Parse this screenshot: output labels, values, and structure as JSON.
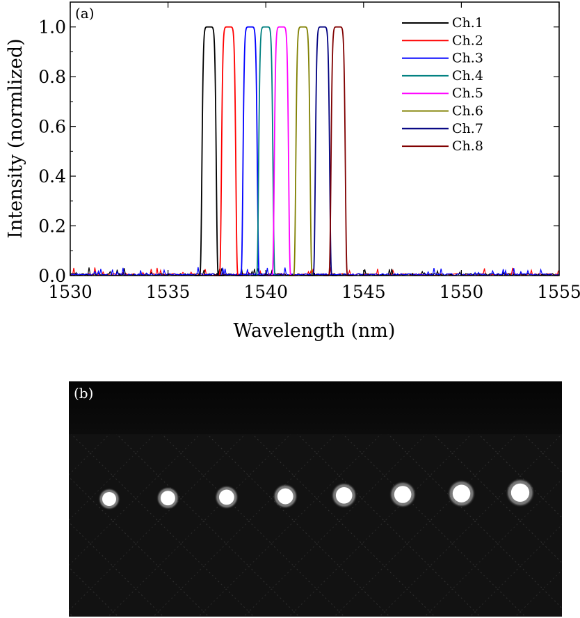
{
  "chart_data": [
    {
      "type": "line",
      "panel_label": "(a)",
      "xlabel": "Wavelength (nm)",
      "ylabel": "Intensity (normlized)",
      "xlim": [
        1530,
        1555
      ],
      "ylim": [
        0,
        1.1
      ],
      "xticks": [
        1530,
        1535,
        1540,
        1545,
        1550,
        1555
      ],
      "xtick_labels": [
        "1530",
        "1535",
        "1540",
        "1545",
        "1550",
        "1555"
      ],
      "yticks": [
        0.0,
        0.2,
        0.4,
        0.6,
        0.8,
        1.0
      ],
      "ytick_labels": [
        "0.0",
        "0.2",
        "0.4",
        "0.6",
        "0.8",
        "1.0"
      ],
      "legend_position": "top-right",
      "series": [
        {
          "name": "Ch.1",
          "color": "#000000",
          "center": 1537.1,
          "peak": 1.0
        },
        {
          "name": "Ch.2",
          "color": "#ff0000",
          "center": 1538.1,
          "peak": 1.0
        },
        {
          "name": "Ch.3",
          "color": "#0000ff",
          "center": 1539.2,
          "peak": 1.0
        },
        {
          "name": "Ch.4",
          "color": "#008080",
          "center": 1540.0,
          "peak": 1.0
        },
        {
          "name": "Ch.5",
          "color": "#ff00ff",
          "center": 1540.8,
          "peak": 1.0
        },
        {
          "name": "Ch.6",
          "color": "#808000",
          "center": 1541.9,
          "peak": 1.0
        },
        {
          "name": "Ch.7",
          "color": "#000080",
          "center": 1542.9,
          "peak": 1.0
        },
        {
          "name": "Ch.8",
          "color": "#800000",
          "center": 1543.7,
          "peak": 1.0
        }
      ]
    },
    {
      "type": "image",
      "panel_label": "(b)",
      "spots": 8
    }
  ]
}
